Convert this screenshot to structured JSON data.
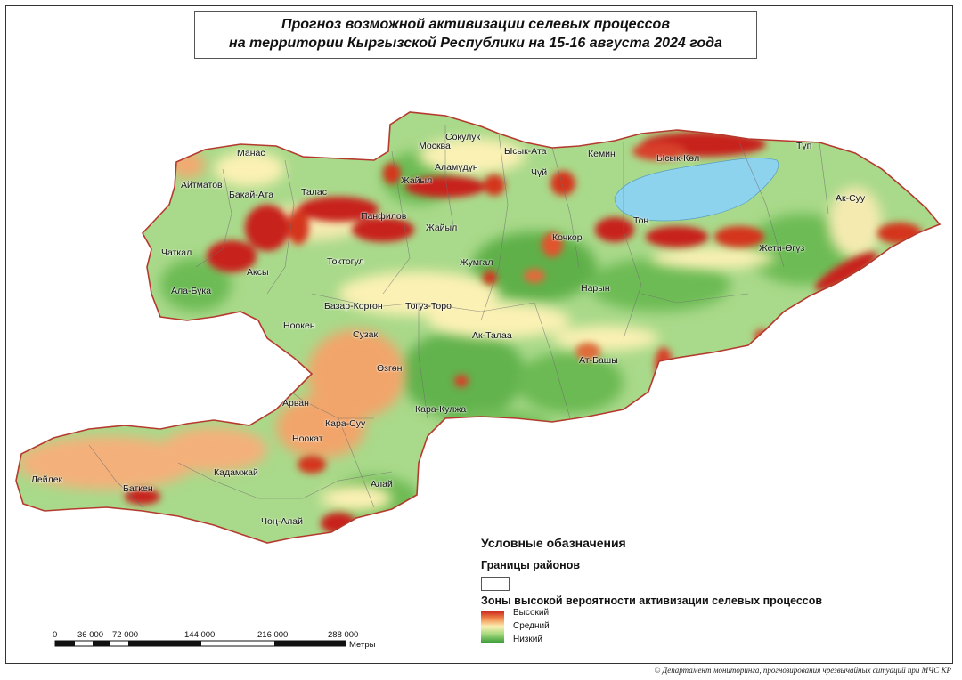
{
  "title": {
    "line1": "Прогноз возможной активизации селевых процессов",
    "line2": "на территории Кыргызской Республики на 15-16 августа 2024 года"
  },
  "districts": [
    "Манас",
    "Айтматов",
    "Бакай-Ата",
    "Талас",
    "Москва",
    "Сокулук",
    "Ысык-Ата",
    "Аламүдүн",
    "Жайыл",
    "Чүй",
    "Кемин",
    "Ысык-Көл",
    "Түп",
    "Ак-Суу",
    "Панфилов",
    "Жайыл",
    "Тоң",
    "Кочкор",
    "Жети-Өгүз",
    "Чаткал",
    "Аксы",
    "Токтогул",
    "Жумгал",
    "Ала-Бука",
    "Нарын",
    "Базар-Коргон",
    "Тогуз-Торо",
    "Ноокен",
    "Сузак",
    "Ак-Талаа",
    "Өзгөн",
    "Ат-Башы",
    "Арван",
    "Кара-Кулжа",
    "Кара-Суу",
    "Ноокат",
    "Лейлек",
    "Кадамжай",
    "Баткен",
    "Алай",
    "Чоң-Алай"
  ],
  "legend": {
    "title": "Условные обазначения",
    "boundaries_label": "Границы районов",
    "zones_label": "Зоны высокой вероятности активизации селевых процессов",
    "high": "Высокий",
    "medium": "Средний",
    "low": "Низкий",
    "colors": {
      "high": "#c8201a",
      "medium": "#fbf1b4",
      "low": "#3c9e3a",
      "lake": "#8ed3ee",
      "border": "#c0392b"
    }
  },
  "scale": {
    "ticks": [
      "0",
      "36 000",
      "72 000",
      "144 000",
      "216 000",
      "288 000"
    ],
    "unit": "Метры"
  },
  "copyright": "© Департамент мониторинга, прогнозирования чрезвычайных ситуаций при МЧС КР"
}
